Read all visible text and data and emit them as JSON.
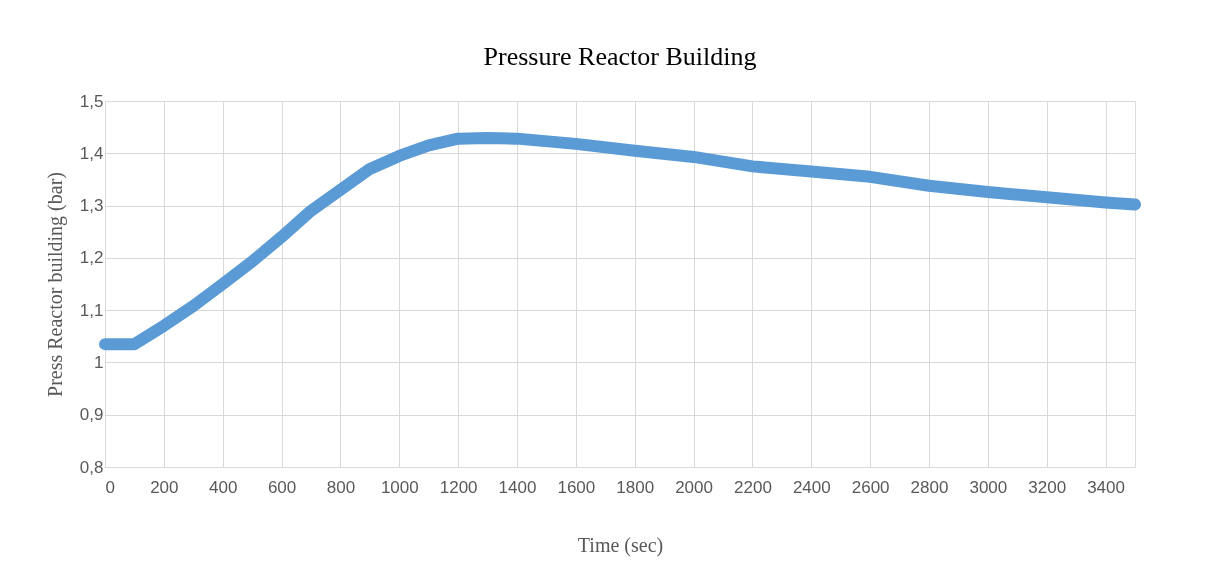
{
  "chart_data": {
    "type": "line",
    "title": "Pressure Reactor Building",
    "xlabel": "Time (sec)",
    "ylabel": "Press Reactor building (bar)",
    "x": [
      0,
      100,
      200,
      300,
      400,
      500,
      600,
      700,
      750,
      800,
      900,
      1000,
      1100,
      1200,
      1300,
      1400,
      1600,
      1800,
      2000,
      2200,
      2400,
      2600,
      2800,
      3000,
      3200,
      3400,
      3500
    ],
    "series": [
      {
        "color": "#5b9bd5",
        "values": [
          1.035,
          1.035,
          1.07,
          1.108,
          1.15,
          1.193,
          1.24,
          1.29,
          1.31,
          1.33,
          1.37,
          1.395,
          1.415,
          1.428,
          1.429,
          1.428,
          1.418,
          1.405,
          1.393,
          1.375,
          1.365,
          1.355,
          1.338,
          1.326,
          1.316,
          1.306,
          1.302
        ]
      }
    ],
    "xlim": [
      0,
      3500
    ],
    "xticks": [
      0,
      200,
      400,
      600,
      800,
      1000,
      1200,
      1400,
      1600,
      1800,
      2000,
      2200,
      2400,
      2600,
      2800,
      3000,
      3200,
      3400
    ],
    "ylim": [
      0.8,
      1.5
    ],
    "yticks": [
      {
        "value": 0.8,
        "label": "0,8"
      },
      {
        "value": 0.9,
        "label": "0,9"
      },
      {
        "value": 1,
        "label": "1"
      },
      {
        "value": 1.1,
        "label": "1,1"
      },
      {
        "value": 1.2,
        "label": "1,2"
      },
      {
        "value": 1.3,
        "label": "1,3"
      },
      {
        "value": 1.4,
        "label": "1,4"
      },
      {
        "value": 1.5,
        "label": "1,5"
      }
    ],
    "grid": true,
    "line_style": "solid"
  }
}
